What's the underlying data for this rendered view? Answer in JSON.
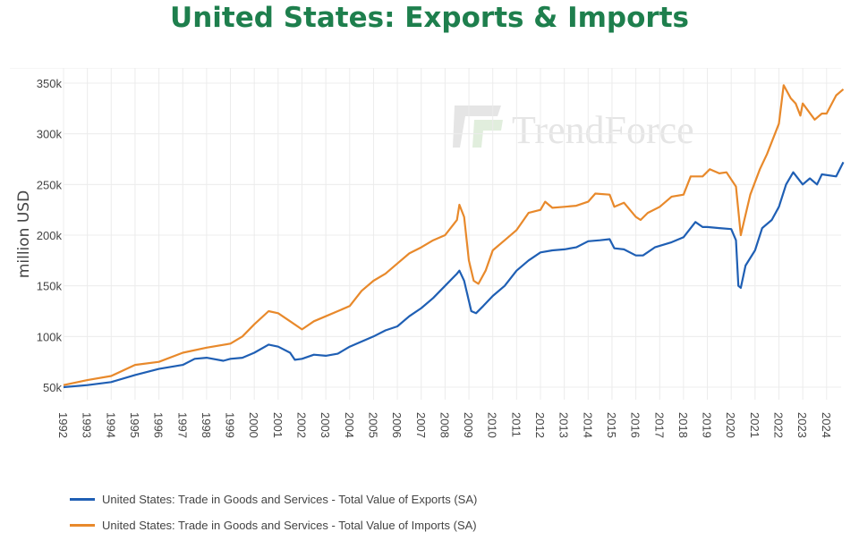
{
  "title": "United States: Exports & Imports",
  "watermark": "TrendForce",
  "chart_data": {
    "type": "line",
    "title": "United States: Exports & Imports",
    "xlabel": "",
    "ylabel": "million USD",
    "xlim": [
      1992,
      2024.7
    ],
    "ylim": [
      50000,
      350000
    ],
    "yticks": [
      "50k",
      "100k",
      "150k",
      "200k",
      "250k",
      "300k",
      "350k"
    ],
    "ytick_values": [
      50,
      100,
      150,
      200,
      250,
      300,
      350
    ],
    "xticks": [
      "1992",
      "1993",
      "1994",
      "1995",
      "1996",
      "1997",
      "1998",
      "1999",
      "2000",
      "2001",
      "2002",
      "2003",
      "2004",
      "2005",
      "2006",
      "2007",
      "2008",
      "2009",
      "2010",
      "2011",
      "2012",
      "2013",
      "2014",
      "2015",
      "2016",
      "2017",
      "2018",
      "2019",
      "2020",
      "2021",
      "2022",
      "2023",
      "2024"
    ],
    "grid": true,
    "legend_position": "bottom",
    "series": [
      {
        "name": "United States: Trade in Goods and Services - Total Value of Exports (SA)",
        "color": "#1f5fb4",
        "x": [
          1992,
          1993,
          1994,
          1995,
          1996,
          1997,
          1997.5,
          1998,
          1998.7,
          1999,
          1999.5,
          2000,
          2000.6,
          2001,
          2001.5,
          2001.7,
          2002,
          2002.5,
          2003,
          2003.5,
          2004,
          2004.5,
          2005,
          2005.5,
          2006,
          2006.5,
          2007,
          2007.5,
          2008,
          2008.5,
          2008.6,
          2008.8,
          2009.1,
          2009.3,
          2009.6,
          2010,
          2010.5,
          2011,
          2011.5,
          2012,
          2012.5,
          2013,
          2013.5,
          2014,
          2014.5,
          2014.9,
          2015.1,
          2015.5,
          2016,
          2016.3,
          2016.8,
          2017.5,
          2018,
          2018.5,
          2018.8,
          2019,
          2019.5,
          2020,
          2020.2,
          2020.3,
          2020.4,
          2020.6,
          2021,
          2021.3,
          2021.7,
          2022,
          2022.3,
          2022.6,
          2023,
          2023.3,
          2023.6,
          2023.8,
          2024.4,
          2024.7
        ],
        "values": [
          50,
          52,
          55,
          62,
          68,
          72,
          78,
          79,
          76,
          78,
          79,
          84,
          92,
          90,
          84,
          77,
          78,
          82,
          81,
          83,
          90,
          95,
          100,
          106,
          110,
          120,
          128,
          138,
          150,
          162,
          165,
          155,
          125,
          123,
          130,
          140,
          150,
          165,
          175,
          183,
          185,
          186,
          188,
          194,
          195,
          196,
          187,
          186,
          180,
          180,
          188,
          193,
          198,
          213,
          208,
          208,
          207,
          206,
          195,
          150,
          148,
          170,
          185,
          207,
          215,
          228,
          250,
          262,
          250,
          256,
          250,
          260,
          258,
          272
        ]
      },
      {
        "name": "United States: Trade in Goods and Services - Total Value of Imports (SA)",
        "color": "#e8892b",
        "x": [
          1992,
          1993,
          1994,
          1995,
          1996,
          1997,
          1998,
          1999,
          1999.5,
          2000,
          2000.6,
          2001,
          2001.5,
          2002,
          2002.5,
          2003,
          2003.5,
          2004,
          2004.5,
          2005,
          2005.5,
          2006,
          2006.5,
          2007,
          2007.5,
          2008,
          2008.5,
          2008.6,
          2008.8,
          2009,
          2009.2,
          2009.4,
          2009.7,
          2010,
          2010.5,
          2011,
          2011.5,
          2012,
          2012.2,
          2012.5,
          2013,
          2013.5,
          2014,
          2014.3,
          2014.9,
          2015.1,
          2015.5,
          2016,
          2016.2,
          2016.5,
          2017,
          2017.5,
          2018,
          2018.3,
          2018.8,
          2019.1,
          2019.5,
          2019.8,
          2020,
          2020.2,
          2020.4,
          2020.5,
          2020.8,
          2021.2,
          2021.5,
          2022,
          2022.2,
          2022.5,
          2022.7,
          2022.9,
          2023,
          2023.5,
          2023.8,
          2024,
          2024.4,
          2024.7
        ],
        "values": [
          52,
          57,
          61,
          72,
          75,
          84,
          89,
          93,
          100,
          112,
          125,
          123,
          115,
          107,
          115,
          120,
          125,
          130,
          145,
          155,
          162,
          172,
          182,
          188,
          195,
          200,
          215,
          230,
          218,
          175,
          155,
          152,
          165,
          185,
          195,
          205,
          222,
          225,
          233,
          227,
          228,
          229,
          233,
          241,
          240,
          228,
          232,
          218,
          215,
          222,
          228,
          238,
          240,
          258,
          258,
          265,
          261,
          262,
          255,
          248,
          200,
          210,
          240,
          265,
          280,
          310,
          348,
          335,
          330,
          318,
          330,
          314,
          320,
          320,
          338,
          344
        ]
      }
    ]
  }
}
